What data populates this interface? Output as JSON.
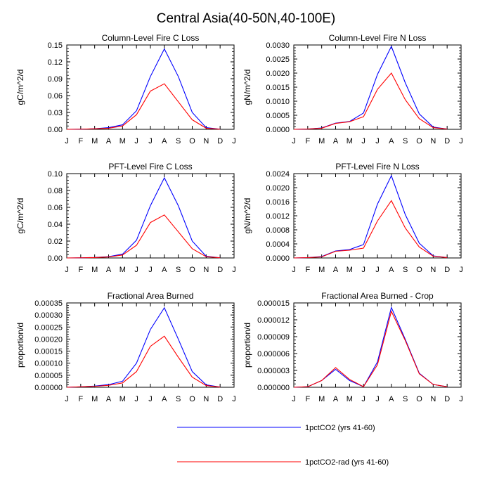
{
  "title": "Central Asia(40-50N,40-100E)",
  "months": [
    "J",
    "F",
    "M",
    "A",
    "M",
    "J",
    "J",
    "A",
    "S",
    "O",
    "N",
    "D",
    "J"
  ],
  "legend": [
    {
      "name": "1pctCO2 (yrs 41-60)",
      "color": "#0000ff"
    },
    {
      "name": "1pctCO2-rad (yrs 41-60)",
      "color": "#ff0000"
    }
  ],
  "chart_data": [
    {
      "type": "line",
      "title": "Column-Level Fire C Loss",
      "ylabel": "gC/m^2/d",
      "ylim": [
        0,
        0.15
      ],
      "yticks": [
        "0.00",
        "0.03",
        "0.06",
        "0.09",
        "0.12",
        "0.15"
      ],
      "ytick_values": [
        0,
        0.03,
        0.06,
        0.09,
        0.12,
        0.15
      ],
      "series": [
        {
          "name": "1pctCO2 (yrs 41-60)",
          "color": "#0000ff",
          "values": [
            0.0,
            0.0003,
            0.001,
            0.003,
            0.008,
            0.033,
            0.094,
            0.143,
            0.094,
            0.03,
            0.003,
            0.0002
          ]
        },
        {
          "name": "1pctCO2-rad (yrs 41-60)",
          "color": "#ff0000",
          "values": [
            0.0,
            0.0003,
            0.001,
            0.002,
            0.006,
            0.026,
            0.068,
            0.081,
            0.049,
            0.017,
            0.002,
            0.0002
          ]
        }
      ]
    },
    {
      "type": "line",
      "title": "Column-Level Fire N Loss",
      "ylabel": "gN/m^2/d",
      "ylim": [
        0,
        0.003
      ],
      "yticks": [
        "0.0000",
        "0.0005",
        "0.0010",
        "0.0015",
        "0.0020",
        "0.0025",
        "0.0030"
      ],
      "ytick_values": [
        0,
        0.0005,
        0.001,
        0.0015,
        0.002,
        0.0025,
        0.003
      ],
      "series": [
        {
          "name": "1pctCO2 (yrs 41-60)",
          "color": "#0000ff",
          "values": [
            0.0,
            1e-05,
            5e-05,
            0.00022,
            0.00028,
            0.00058,
            0.00195,
            0.00295,
            0.00165,
            0.00055,
            8e-05,
            1e-05
          ]
        },
        {
          "name": "1pctCO2-rad (yrs 41-60)",
          "color": "#ff0000",
          "values": [
            0.0,
            1e-05,
            4e-05,
            0.00021,
            0.00027,
            0.00045,
            0.00142,
            0.002,
            0.00105,
            0.00038,
            6e-05,
            1e-05
          ]
        }
      ]
    },
    {
      "type": "line",
      "title": "PFT-Level Fire C Loss",
      "ylabel": "gC/m^2/d",
      "ylim": [
        0,
        0.1
      ],
      "yticks": [
        "0.00",
        "0.02",
        "0.04",
        "0.06",
        "0.08",
        "0.10"
      ],
      "ytick_values": [
        0,
        0.02,
        0.04,
        0.06,
        0.08,
        0.1
      ],
      "series": [
        {
          "name": "1pctCO2 (yrs 41-60)",
          "color": "#0000ff",
          "values": [
            0.0,
            0.0002,
            0.0006,
            0.0015,
            0.0045,
            0.021,
            0.062,
            0.095,
            0.062,
            0.02,
            0.002,
            0.0002
          ]
        },
        {
          "name": "1pctCO2-rad (yrs 41-60)",
          "color": "#ff0000",
          "values": [
            0.0,
            0.0002,
            0.0005,
            0.0012,
            0.0035,
            0.015,
            0.042,
            0.051,
            0.031,
            0.011,
            0.0015,
            0.0002
          ]
        }
      ]
    },
    {
      "type": "line",
      "title": "PFT-Level Fire N Loss",
      "ylabel": "gN/m^2/d",
      "ylim": [
        0,
        0.0024
      ],
      "yticks": [
        "0.0000",
        "0.0004",
        "0.0008",
        "0.0012",
        "0.0016",
        "0.0020",
        "0.0024"
      ],
      "ytick_values": [
        0,
        0.0004,
        0.0008,
        0.0012,
        0.0016,
        0.002,
        0.0024
      ],
      "series": [
        {
          "name": "1pctCO2 (yrs 41-60)",
          "color": "#0000ff",
          "values": [
            0.0,
            1e-05,
            4e-05,
            0.0002,
            0.00024,
            0.00038,
            0.00153,
            0.00234,
            0.00123,
            0.00042,
            6e-05,
            1e-05
          ]
        },
        {
          "name": "1pctCO2-rad (yrs 41-60)",
          "color": "#ff0000",
          "values": [
            0.0,
            1e-05,
            3e-05,
            0.00019,
            0.00022,
            0.00028,
            0.00105,
            0.00163,
            0.00085,
            0.00031,
            5e-05,
            1e-05
          ]
        }
      ]
    },
    {
      "type": "line",
      "title": "Fractional Area Burned",
      "ylabel": "proportion/d",
      "ylim": [
        0,
        0.00035
      ],
      "yticks": [
        "0.00000",
        "0.00005",
        "0.00010",
        "0.00015",
        "0.00020",
        "0.00025",
        "0.00030",
        "0.00035"
      ],
      "ytick_values": [
        0,
        5e-05,
        0.0001,
        0.00015,
        0.0002,
        0.00025,
        0.0003,
        0.00035
      ],
      "series": [
        {
          "name": "1pctCO2 (yrs 41-60)",
          "color": "#0000ff",
          "values": [
            0.0,
            2e-06,
            5e-06,
            1.1e-05,
            2.5e-05,
            0.0001,
            0.00024,
            0.00033,
            0.0002,
            6.5e-05,
            1e-05,
            1e-06
          ]
        },
        {
          "name": "1pctCO2-rad (yrs 41-60)",
          "color": "#ff0000",
          "values": [
            0.0,
            2e-06,
            4e-06,
            8e-06,
            1.8e-05,
            6.5e-05,
            0.00017,
            0.000212,
            0.000125,
            4.2e-05,
            7e-06,
            1e-06
          ]
        }
      ]
    },
    {
      "type": "line",
      "title": "Fractional Area Burned - Crop",
      "ylabel": "proportion/d",
      "ylim": [
        0,
        1.5e-05
      ],
      "yticks": [
        "0.000000",
        "0.000003",
        "0.000006",
        "0.000009",
        "0.000012",
        "0.000015"
      ],
      "ytick_values": [
        0,
        3e-06,
        6e-06,
        9e-06,
        1.2e-05,
        1.5e-05
      ],
      "series": [
        {
          "name": "1pctCO2 (yrs 41-60)",
          "color": "#0000ff",
          "values": [
            0.0,
            1e-07,
            1.2e-06,
            3.2e-06,
            1.2e-06,
            1e-07,
            4.5e-06,
            1.42e-05,
            8.5e-06,
            2.5e-06,
            5e-07,
            1e-07
          ]
        },
        {
          "name": "1pctCO2-rad (yrs 41-60)",
          "color": "#ff0000",
          "values": [
            0.0,
            1e-07,
            1.2e-06,
            3.5e-06,
            1.4e-06,
            1e-07,
            4e-06,
            1.35e-05,
            8.3e-06,
            2.4e-06,
            5e-07,
            1e-07
          ]
        }
      ]
    }
  ]
}
